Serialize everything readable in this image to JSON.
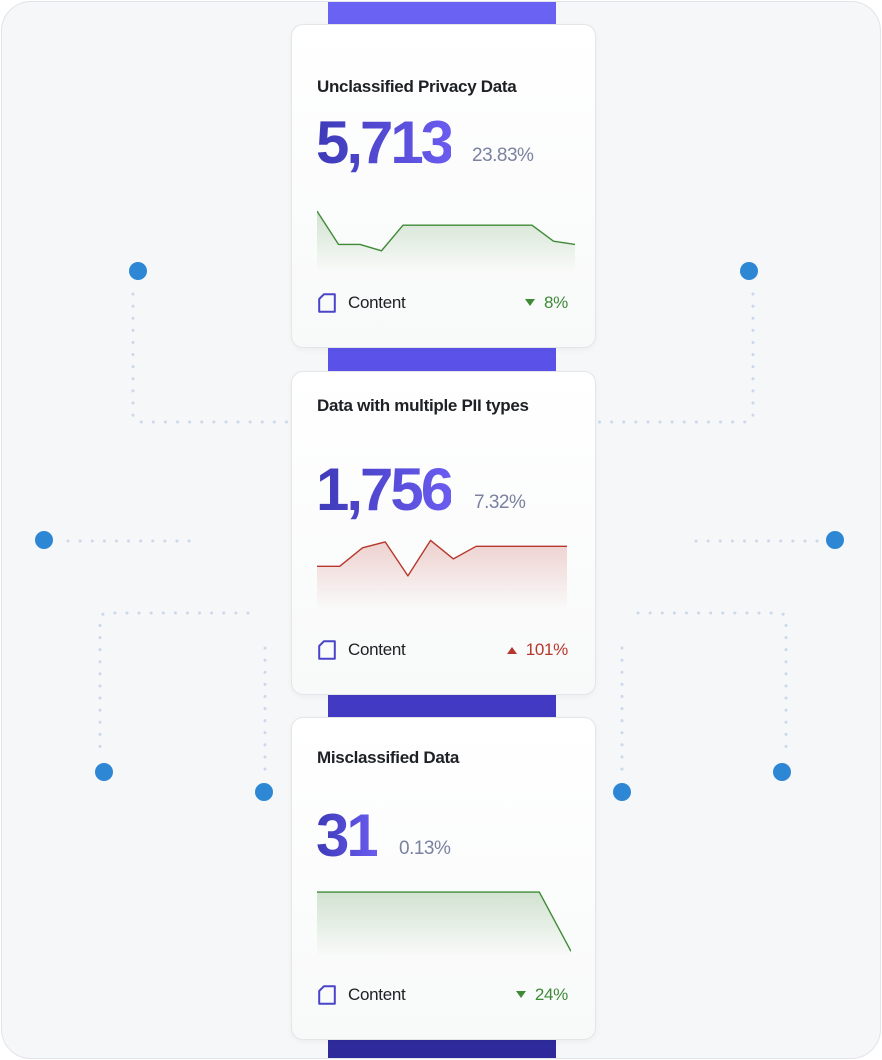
{
  "cards": [
    {
      "title": "Unclassified Privacy Data",
      "value": "5,713",
      "percent": "23.83%",
      "footer_label": "Content",
      "trend_direction": "down",
      "trend_value": "8%",
      "trend_color": "#3e8a36",
      "sparkline_values": [
        92,
        40,
        40,
        30,
        70,
        70,
        70,
        70,
        70,
        70,
        70,
        45,
        40
      ]
    },
    {
      "title": "Data with multiple PII types",
      "value": "1,756",
      "percent": "7.32%",
      "footer_label": "Content",
      "trend_direction": "up",
      "trend_value": "101%",
      "trend_color": "#b8372c",
      "sparkline_values": [
        55,
        55,
        80,
        88,
        42,
        90,
        65,
        82,
        82,
        82,
        82,
        82
      ]
    },
    {
      "title": "Misclassified Data",
      "value": "31",
      "percent": "0.13%",
      "footer_label": "Content",
      "trend_direction": "down",
      "trend_value": "24%",
      "trend_color": "#3e8a36",
      "sparkline_values": [
        85,
        85,
        85,
        85,
        85,
        85,
        85,
        85,
        5
      ]
    }
  ],
  "colors": {
    "spine": "#5a52e8",
    "node": "#2e87d4",
    "connector": "#cfdcec",
    "accent_text": "#4a45c8"
  },
  "icons": {
    "footer": "document-icon",
    "connector_node": "dot"
  }
}
